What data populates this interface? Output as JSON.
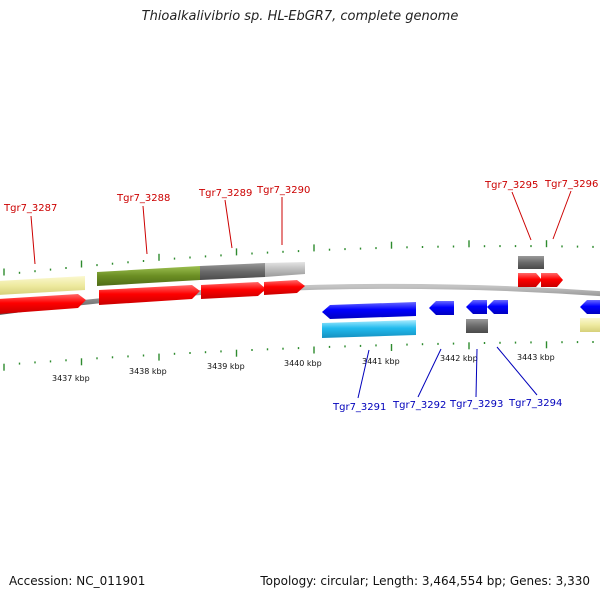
{
  "title": "Thioalkalivibrio sp. HL-EbGR7, complete genome",
  "accession": "Accession: NC_011901",
  "summary": "Topology: circular; Length: 3,464,554 bp; Genes: 3,330",
  "colors": {
    "backbone": "#8a8a8a",
    "tick": "#2e8b2e",
    "forward_label": "#cc0000",
    "reverse_label": "#0000bb",
    "cds": "#ff0000",
    "gene": "#eeeaa0",
    "olive": "#6b8e23",
    "grey_dark": "#6a6a6a",
    "grey_light": "#bdbdbd",
    "blue": "#0000ff",
    "cyan": "#22bbee"
  },
  "kbp_labels": [
    "3437 kbp",
    "3438 kbp",
    "3439 kbp",
    "3440 kbp",
    "3441 kbp",
    "3442 kbp",
    "3443 kbp"
  ],
  "forward_genes": [
    "Tgr7_3287",
    "Tgr7_3288",
    "Tgr7_3289",
    "Tgr7_3290",
    "Tgr7_3295",
    "Tgr7_3296"
  ],
  "reverse_genes": [
    "Tgr7_3291",
    "Tgr7_3292",
    "Tgr7_3293",
    "Tgr7_3294"
  ]
}
